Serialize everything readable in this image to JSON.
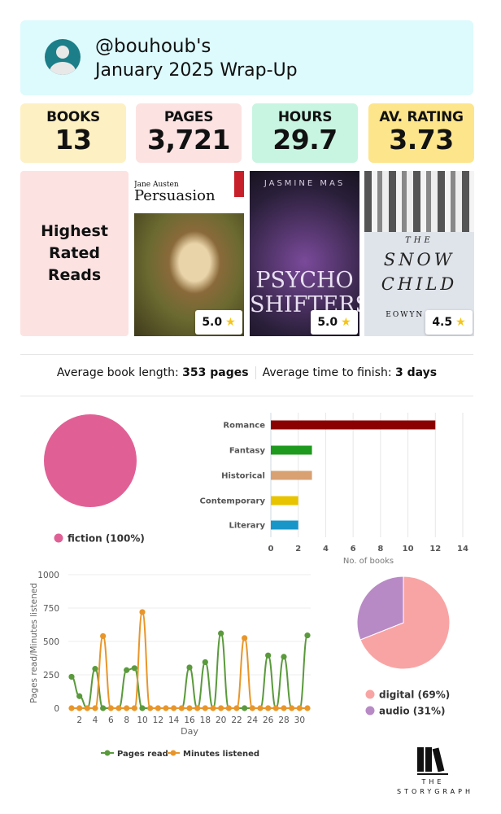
{
  "header": {
    "username": "@bouhoub's",
    "subtitle": "January 2025 Wrap-Up",
    "avatar_icon": "default-user-avatar"
  },
  "stats": [
    {
      "label": "BOOKS",
      "value": "13",
      "color": "#fdf0c2"
    },
    {
      "label": "PAGES",
      "value": "3,721",
      "color": "#fde2e2"
    },
    {
      "label": "HOURS",
      "value": "29.7",
      "color": "#c8f5e1"
    },
    {
      "label": "AV. RATING",
      "value": "3.73",
      "color": "#fde58c"
    }
  ],
  "highest_rated": {
    "title": "Highest Rated Reads",
    "books": [
      {
        "cover_text": [
          "Jane Austen",
          "Persuasion"
        ],
        "rating": "5.0"
      },
      {
        "cover_text": [
          "JASMINE MAS",
          "PSYCHO",
          "SHIFTERS"
        ],
        "rating": "5.0"
      },
      {
        "cover_text": [
          "THE",
          "SNOW",
          "CHILD",
          "EOWYN IVEY"
        ],
        "rating": "4.5"
      }
    ]
  },
  "averages": {
    "length_label": "Average book length:",
    "length_value": "353 pages",
    "time_label": "Average time to finish:",
    "time_value": "3 days"
  },
  "chart_data": [
    {
      "type": "pie",
      "slices": [
        {
          "label": "fiction (100%)",
          "value": 100,
          "color": "#e06095"
        }
      ],
      "legend": "bottom"
    },
    {
      "type": "bar",
      "orientation": "horizontal",
      "categories": [
        "Romance",
        "Fantasy",
        "Historical",
        "Contemporary",
        "Literary"
      ],
      "values": [
        12,
        3,
        3,
        2,
        2
      ],
      "colors": [
        "#8b0000",
        "#1e9a1e",
        "#d9a072",
        "#e8c400",
        "#1996c8"
      ],
      "xlabel": "No. of books",
      "xlim": [
        0,
        14
      ],
      "xticks": [
        0,
        2,
        4,
        6,
        8,
        10,
        12,
        14
      ],
      "grid": true
    },
    {
      "type": "line",
      "x": [
        1,
        2,
        3,
        4,
        5,
        6,
        7,
        8,
        9,
        10,
        11,
        12,
        13,
        14,
        15,
        16,
        17,
        18,
        19,
        20,
        21,
        22,
        23,
        24,
        25,
        26,
        27,
        28,
        29,
        30,
        31
      ],
      "series": [
        {
          "name": "Pages read",
          "color": "#5a9a3c",
          "values": [
            235,
            90,
            0,
            295,
            0,
            0,
            0,
            285,
            300,
            0,
            0,
            0,
            0,
            0,
            0,
            305,
            0,
            345,
            0,
            560,
            0,
            0,
            0,
            0,
            0,
            395,
            0,
            385,
            0,
            0,
            545
          ]
        },
        {
          "name": "Minutes listened",
          "color": "#e8962a",
          "values": [
            0,
            0,
            0,
            0,
            540,
            0,
            0,
            0,
            0,
            720,
            0,
            0,
            0,
            0,
            0,
            0,
            0,
            0,
            0,
            0,
            0,
            0,
            525,
            0,
            0,
            0,
            0,
            0,
            0,
            0,
            0
          ]
        }
      ],
      "xlabel": "Day",
      "ylabel": "Pages read/Minutes listened",
      "ylim": [
        0,
        1000
      ],
      "yticks": [
        0,
        250,
        500,
        750,
        1000
      ],
      "xticks": [
        2,
        4,
        6,
        8,
        10,
        12,
        14,
        16,
        18,
        20,
        22,
        24,
        26,
        28,
        30
      ],
      "legend": "bottom",
      "grid": true
    },
    {
      "type": "pie",
      "slices": [
        {
          "label": "digital (69%)",
          "value": 69,
          "color": "#f9a4a4"
        },
        {
          "label": "audio (31%)",
          "value": 31,
          "color": "#b88ac5"
        }
      ],
      "legend": "bottom"
    }
  ],
  "logo": {
    "line1": "THE",
    "line2": "STORYGRAPH"
  }
}
